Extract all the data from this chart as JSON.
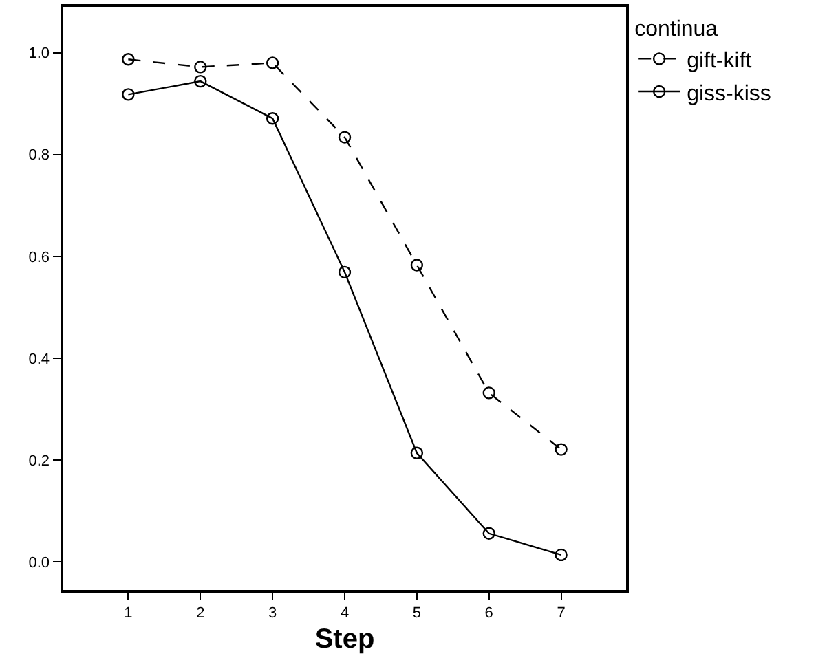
{
  "chart_data": {
    "type": "line",
    "xlabel": "Step",
    "legend_title": "continua",
    "legend": "top right",
    "marker": "circle",
    "x": [
      1,
      2,
      3,
      4,
      5,
      6,
      7
    ],
    "xlim": [
      0.1,
      7.9
    ],
    "xticks": [
      1,
      2,
      3,
      4,
      5,
      6,
      7
    ],
    "ylim": [
      -0.055,
      1.09
    ],
    "yticks": [
      {
        "value": 0,
        "label": "0.0"
      },
      {
        "value": 0.2,
        "label": "0.2"
      },
      {
        "value": 0.4,
        "label": "0.4"
      },
      {
        "value": 0.6,
        "label": "0.6"
      },
      {
        "value": 0.8,
        "label": "0.8"
      },
      {
        "value": 1,
        "label": "1.0"
      }
    ],
    "series": [
      {
        "name": "gift-kift",
        "color": "#000000",
        "line_style": "dashed",
        "values": [
          0.987,
          0.972,
          0.98,
          0.834,
          0.583,
          0.332,
          0.221
        ]
      },
      {
        "name": "giss-kiss",
        "color": "#000000",
        "line_style": "solid",
        "values": [
          0.918,
          0.944,
          0.871,
          0.569,
          0.214,
          0.056,
          0.014
        ]
      }
    ]
  }
}
